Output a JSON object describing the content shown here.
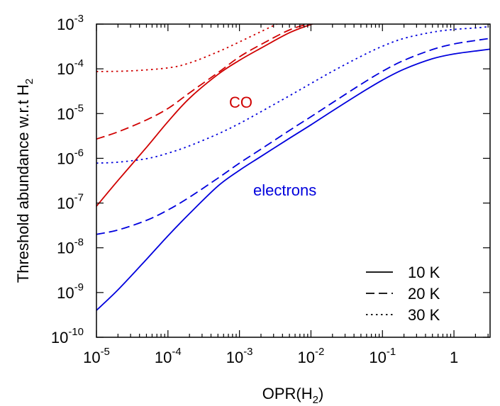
{
  "chart_data": {
    "type": "line",
    "xlabel": {
      "base": "OPR(H",
      "sub": "2",
      "tail": ")"
    },
    "ylabel": {
      "base": "Threshold abundance w.r.t H",
      "sub": "2"
    },
    "xscale": "log",
    "yscale": "log",
    "xlim": [
      1e-05,
      3.2
    ],
    "ylim": [
      1e-10,
      0.001
    ],
    "x_ticks": [
      {
        "base": "10",
        "exp": "-5"
      },
      {
        "base": "10",
        "exp": "-4"
      },
      {
        "base": "10",
        "exp": "-3"
      },
      {
        "base": "10",
        "exp": "-2"
      },
      {
        "base": "10",
        "exp": "-1"
      },
      {
        "base": "1",
        "exp": ""
      }
    ],
    "y_ticks": [
      {
        "base": "10",
        "exp": "-10"
      },
      {
        "base": "10",
        "exp": "-9"
      },
      {
        "base": "10",
        "exp": "-8"
      },
      {
        "base": "10",
        "exp": "-7"
      },
      {
        "base": "10",
        "exp": "-6"
      },
      {
        "base": "10",
        "exp": "-5"
      },
      {
        "base": "10",
        "exp": "-4"
      },
      {
        "base": "10",
        "exp": "-3"
      }
    ],
    "legend": {
      "position": "bottom-right",
      "entries": [
        {
          "label": "10 K",
          "dash": "solid"
        },
        {
          "label": "20 K",
          "dash": "dashed"
        },
        {
          "label": "30 K",
          "dash": "dotted"
        }
      ]
    },
    "annotations": [
      {
        "text": "CO",
        "color": "#d00000"
      },
      {
        "text": "electrons",
        "color": "#0000dd"
      }
    ],
    "series": [
      {
        "species": "CO",
        "temperature": "10 K",
        "color": "#d00000",
        "dash": "solid",
        "x": [
          1e-05,
          2e-05,
          5e-05,
          0.0001,
          0.0002,
          0.0005,
          0.001,
          0.002,
          0.005,
          0.01,
          0.014
        ],
        "y": [
          8.5e-08,
          3.2e-07,
          1.75e-06,
          6.6e-06,
          2.2e-05,
          7.5e-05,
          0.000155,
          0.00029,
          0.00064,
          0.00098,
          0.00115
        ]
      },
      {
        "species": "CO",
        "temperature": "20 K",
        "color": "#d00000",
        "dash": "dashed",
        "x": [
          1e-05,
          2e-05,
          5e-05,
          0.0001,
          0.0002,
          0.0005,
          0.001,
          0.002,
          0.005,
          0.01,
          0.014
        ],
        "y": [
          2.7e-06,
          3.9e-06,
          7.2e-06,
          1.3e-05,
          2.9e-05,
          8.2e-05,
          0.000185,
          0.00035,
          0.00074,
          0.00105,
          0.0012
        ]
      },
      {
        "species": "CO",
        "temperature": "30 K",
        "color": "#d00000",
        "dash": "dotted",
        "x": [
          1e-05,
          3e-05,
          0.0001,
          0.0002,
          0.0005,
          0.001,
          0.002,
          0.004
        ],
        "y": [
          8.7e-05,
          9e-05,
          0.000105,
          0.000135,
          0.00024,
          0.0004,
          0.00068,
          0.00115
        ]
      },
      {
        "species": "electrons",
        "temperature": "10 K",
        "color": "#0000dd",
        "dash": "solid",
        "x": [
          1e-05,
          2e-05,
          5e-05,
          0.0001,
          0.0002,
          0.0005,
          0.001,
          0.002,
          0.005,
          0.01,
          0.02,
          0.05,
          0.1,
          0.2,
          0.5,
          1,
          2,
          3.2
        ],
        "y": [
          4e-10,
          1.15e-09,
          5.5e-09,
          1.85e-08,
          5.8e-08,
          2.4e-07,
          5.4e-07,
          1.1e-06,
          2.8e-06,
          5.6e-06,
          1.15e-05,
          2.9e-05,
          5.6e-05,
          9.8e-05,
          0.000168,
          0.000215,
          0.00025,
          0.000275
        ]
      },
      {
        "species": "electrons",
        "temperature": "20 K",
        "color": "#0000dd",
        "dash": "dashed",
        "x": [
          1e-05,
          2e-05,
          5e-05,
          0.0001,
          0.0002,
          0.0005,
          0.001,
          0.002,
          0.005,
          0.01,
          0.02,
          0.05,
          0.1,
          0.2,
          0.5,
          1,
          2,
          3.2
        ],
        "y": [
          2e-08,
          2.5e-08,
          4.1e-08,
          7e-08,
          1.35e-07,
          3.6e-07,
          7.8e-07,
          1.6e-06,
          4.2e-06,
          8.5e-06,
          1.75e-05,
          4.5e-05,
          8.8e-05,
          0.000155,
          0.00027,
          0.00036,
          0.00043,
          0.00048
        ]
      },
      {
        "species": "electrons",
        "temperature": "30 K",
        "color": "#0000dd",
        "dash": "dotted",
        "x": [
          1e-05,
          2e-05,
          5e-05,
          0.0001,
          0.0002,
          0.0005,
          0.001,
          0.002,
          0.005,
          0.01,
          0.02,
          0.05,
          0.1,
          0.2,
          0.5,
          1,
          2,
          3.2
        ],
        "y": [
          7.8e-07,
          8.2e-07,
          9.8e-07,
          1.3e-06,
          1.9e-06,
          3.5e-06,
          6e-06,
          1.1e-05,
          2.5e-05,
          4.7e-05,
          8.8e-05,
          0.00019,
          0.00032,
          0.00048,
          0.00066,
          0.00076,
          0.00082,
          0.00088
        ]
      }
    ]
  }
}
